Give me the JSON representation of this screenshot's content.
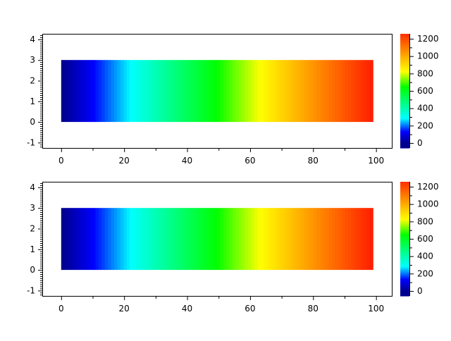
{
  "chart_data": [
    {
      "type": "heatmap",
      "title": "",
      "xlabel": "",
      "ylabel": "",
      "xlim": [
        -6,
        105
      ],
      "ylim": [
        -1.26,
        4.27
      ],
      "xticks": [
        0,
        20,
        40,
        60,
        80,
        100
      ],
      "yticks": [
        -1,
        0,
        1,
        2,
        3,
        4
      ],
      "grid": false,
      "x_range": [
        0,
        99
      ],
      "y_range": [
        0,
        3
      ],
      "z_range": [
        0,
        1287
      ],
      "z_description": "value increases linearly with x, constant in y",
      "colormap": [
        "#00008f",
        "#0000ff",
        "#00ffff",
        "#00ff00",
        "#ffff00",
        "#ff2000"
      ],
      "colorbar": {
        "ticks": [
          0,
          200,
          400,
          600,
          800,
          1000,
          1200
        ],
        "ylim": [
          -57,
          1257
        ],
        "placement": "right"
      }
    },
    {
      "type": "heatmap",
      "title": "",
      "xlabel": "",
      "ylabel": "",
      "xlim": [
        -6,
        105
      ],
      "ylim": [
        -1.26,
        4.27
      ],
      "xticks": [
        0,
        20,
        40,
        60,
        80,
        100
      ],
      "yticks": [
        -1,
        0,
        1,
        2,
        3,
        4
      ],
      "grid": false,
      "x_range": [
        0,
        99
      ],
      "y_range": [
        0,
        3
      ],
      "z_range": [
        0,
        1287
      ],
      "z_description": "value increases linearly with x, constant in y",
      "colormap": [
        "#00008f",
        "#0000ff",
        "#00ffff",
        "#00ff00",
        "#ffff00",
        "#ff2000"
      ],
      "colorbar": {
        "ticks": [
          0,
          200,
          400,
          600,
          800,
          1000,
          1200
        ],
        "ylim": [
          -57,
          1257
        ],
        "placement": "right"
      }
    }
  ]
}
